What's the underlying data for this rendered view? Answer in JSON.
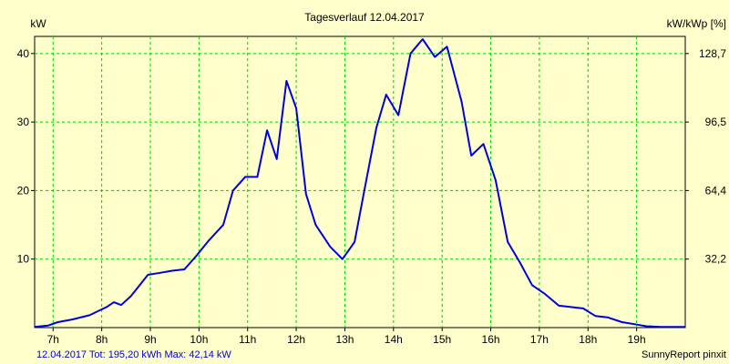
{
  "chart_data": {
    "type": "line",
    "title": "Tagesverlauf 12.04.2017",
    "ylabel": "kW",
    "ylabel_right": "kW/kWp [%]",
    "xlim": [
      6.62,
      20.0
    ],
    "ylim": [
      0,
      42.5
    ],
    "x_ticks": [
      7,
      8,
      9,
      10,
      11,
      12,
      13,
      14,
      15,
      16,
      17,
      18,
      19
    ],
    "x_tick_labels": [
      "7h",
      "8h",
      "9h",
      "10h",
      "11h",
      "12h",
      "13h",
      "14h",
      "15h",
      "16h",
      "17h",
      "18h",
      "19h"
    ],
    "y_ticks": [
      10,
      20,
      30,
      40
    ],
    "y_tick_labels": [
      "10",
      "20",
      "30",
      "40"
    ],
    "y_right_ticks": [
      10,
      20,
      30,
      40
    ],
    "y_right_tick_labels": [
      "32,2",
      "64,4",
      "96,5",
      "128,7"
    ],
    "grid": true,
    "colors": {
      "background": "#ffffcc",
      "plot_background": "#ffffcc",
      "grid": "#00cc00",
      "line": "#0000dd",
      "footer_left": "#0000cc"
    },
    "series": [
      {
        "name": "kW",
        "x": [
          6.62,
          6.9,
          7.1,
          7.4,
          7.75,
          8.1,
          8.25,
          8.4,
          8.6,
          8.95,
          9.2,
          9.45,
          9.7,
          9.95,
          10.2,
          10.5,
          10.7,
          10.95,
          11.2,
          11.4,
          11.6,
          11.8,
          12.0,
          12.2,
          12.4,
          12.7,
          12.95,
          13.2,
          13.4,
          13.65,
          13.85,
          14.1,
          14.35,
          14.6,
          14.85,
          15.1,
          15.4,
          15.6,
          15.85,
          16.1,
          16.35,
          16.6,
          16.85,
          17.1,
          17.4,
          17.65,
          17.9,
          18.15,
          18.4,
          18.7,
          18.95,
          19.2,
          19.5,
          19.75,
          20.0
        ],
        "y": [
          0.1,
          0.3,
          0.8,
          1.2,
          1.8,
          3.0,
          3.7,
          3.3,
          4.6,
          7.7,
          8.0,
          8.3,
          8.5,
          10.5,
          12.7,
          15.0,
          20.0,
          22.0,
          22.0,
          28.8,
          24.6,
          36.0,
          32.0,
          19.5,
          15.0,
          11.8,
          10.0,
          12.5,
          20.0,
          29.2,
          34.0,
          31.0,
          40.0,
          42.1,
          39.5,
          41.0,
          33.0,
          25.1,
          26.8,
          21.5,
          12.5,
          9.5,
          6.2,
          5.0,
          3.2,
          3.0,
          2.8,
          1.7,
          1.5,
          0.8,
          0.5,
          0.2,
          0.1,
          0.1,
          0.1
        ]
      }
    ],
    "footer_left": "12.04.2017 Tot: 195,20 kWh Max: 42,14 kW",
    "footer_right": "SunnyReport pinxit"
  }
}
